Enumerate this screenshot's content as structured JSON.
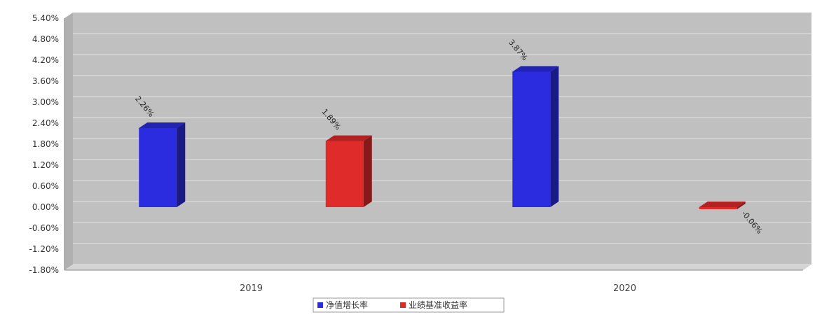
{
  "chart_data": {
    "type": "bar",
    "title": "",
    "xlabel": "",
    "ylabel": "",
    "categories": [
      "2019",
      "2020"
    ],
    "series": [
      {
        "name": "净值增长率",
        "values": [
          2.26,
          3.87
        ],
        "value_labels": [
          "2.26%",
          "3.87%"
        ],
        "color": "#2b2be0"
      },
      {
        "name": "业绩基准收益率",
        "values": [
          1.89,
          -0.06
        ],
        "value_labels": [
          "1.89%",
          "-0.06%"
        ],
        "color": "#e02b2b"
      }
    ],
    "ylim": [
      -1.8,
      5.4
    ],
    "yticks": [
      5.4,
      4.8,
      4.2,
      3.6,
      3.0,
      2.4,
      1.8,
      1.2,
      0.6,
      0.0,
      -0.6,
      -1.2,
      -1.8
    ],
    "ytick_labels": [
      "5.40%",
      "4.80%",
      "4.20%",
      "3.60%",
      "3.00%",
      "2.40%",
      "1.80%",
      "1.20%",
      "0.60%",
      "0.00%",
      "-0.60%",
      "-1.20%",
      "-1.80%"
    ],
    "grid": true,
    "legend_position": "bottom-center",
    "plot_background": "#c0c0c0"
  }
}
